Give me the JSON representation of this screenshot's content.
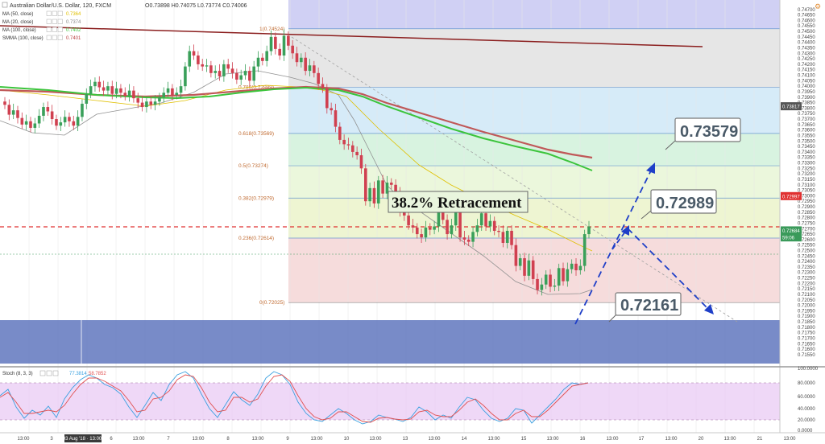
{
  "header": {
    "symbol": "Australian Dollar/U.S. Dollar, 120, FXCM",
    "ohlc": "O0.73898  H0.74075  L0.73774  C0.74006"
  },
  "legend": [
    {
      "label": "MA (50, close)",
      "value": "0.7364",
      "color": "#e0c000"
    },
    {
      "label": "MA (20, close)",
      "value": "0.7374",
      "color": "#888888"
    },
    {
      "label": "MA (100, close)",
      "value": "0.7402",
      "color": "#3cc43c"
    },
    {
      "label": "SMMA (100, close)",
      "value": "0.7401",
      "color": "#b84040"
    }
  ],
  "fib_levels": [
    {
      "label": "1(0.74524)",
      "value": 0.74524,
      "zone": "#e6e6e6"
    },
    {
      "label": "0.786(0.73989)",
      "value": 0.73989,
      "zone": "#d6ebf8"
    },
    {
      "label": "0.618(0.73569)",
      "value": 0.73569,
      "zone": "#d8f3e0"
    },
    {
      "label": "0.5(0.73274)",
      "value": 0.73274,
      "zone": "#ebf7dc"
    },
    {
      "label": "0.382(0.72979)",
      "value": 0.72979,
      "zone": "#eef5d2"
    },
    {
      "label": "0.236(0.72614)",
      "value": 0.72614,
      "zone": "#f6dcdc"
    },
    {
      "label": "0(0.72025)",
      "value": 0.72025,
      "zone": "#f6dcdc"
    }
  ],
  "annotations": {
    "retracement_label": "38.2% Retracement",
    "target_upper": "0.73579",
    "target_middle": "0.72989",
    "target_lower": "0.72161"
  },
  "price_tags": [
    {
      "label": "0.73817",
      "value": 0.73817,
      "color": "#555555"
    },
    {
      "label": "0.72997",
      "value": 0.72997,
      "color": "#e03030"
    },
    {
      "label": "0.72684",
      "value": 0.72684,
      "color": "#3a9a5a"
    },
    {
      "label": "59:06",
      "value": 0.7262,
      "color": "#3a9a5a"
    }
  ],
  "stoch": {
    "label": "Stoch (8, 3, 3)",
    "k_value": "77.3814",
    "d_value": "58.7852",
    "levels": [
      "100.0000",
      "80.0000",
      "60.0000",
      "40.0000",
      "20.0000",
      "0.0000"
    ]
  },
  "time_axis": [
    "13:00",
    "3",
    "03 Aug '18 · 13:00",
    "6",
    "13:00",
    "7",
    "13:00",
    "8",
    "13:00",
    "9",
    "13:00",
    "10",
    "13:00",
    "13",
    "13:00",
    "14",
    "13:00",
    "15",
    "13:00",
    "16",
    "13:00",
    "17",
    "13:00",
    "20",
    "13:00",
    "21",
    "13:00"
  ],
  "chart_data": {
    "type": "candlestick",
    "title": "Australian Dollar/U.S. Dollar, 120, FXCM",
    "ylim": [
      0.7152,
      0.7475
    ],
    "y_ticks": [
      0.747,
      0.7465,
      0.746,
      0.7455,
      0.745,
      0.7445,
      0.744,
      0.7435,
      0.743,
      0.7425,
      0.742,
      0.7415,
      0.741,
      0.7405,
      0.74,
      0.7395,
      0.739,
      0.7385,
      0.738,
      0.7375,
      0.737,
      0.7365,
      0.736,
      0.7355,
      0.735,
      0.7345,
      0.734,
      0.7335,
      0.733,
      0.7325,
      0.732,
      0.7315,
      0.731,
      0.7305,
      0.73,
      0.7295,
      0.729,
      0.7285,
      0.728,
      0.7275,
      0.727,
      0.7265,
      0.726,
      0.7255,
      0.725,
      0.7245,
      0.724,
      0.7235,
      0.723,
      0.7225,
      0.722,
      0.7215,
      0.721,
      0.7205,
      0.72,
      0.7195,
      0.719,
      0.7185,
      0.718,
      0.7175,
      0.717,
      0.7165,
      0.716,
      0.7155
    ],
    "y_tick_labels": [
      "0.74700",
      "0.74650",
      "0.74600",
      "0.74550",
      "0.74500",
      "0.74450",
      "0.74400",
      "0.74350",
      "0.74300",
      "0.74250",
      "0.74200",
      "0.74150",
      "0.74100",
      "0.74050",
      "0.74000",
      "0.73950",
      "0.73900",
      "0.73850",
      "0.73800",
      "0.73750",
      "0.73700",
      "0.73650",
      "0.73600",
      "0.73550",
      "0.73500",
      "0.73450",
      "0.73400",
      "0.73350",
      "0.73300",
      "0.73250",
      "0.73200",
      "0.73150",
      "0.73100",
      "0.73050",
      "0.73000",
      "0.72950",
      "0.72900",
      "0.72850",
      "0.72800",
      "0.72750",
      "0.72700",
      "0.72650",
      "0.72600",
      "0.72550",
      "0.72500",
      "0.72450",
      "0.72400",
      "0.72350",
      "0.72300",
      "0.72250",
      "0.72200",
      "0.72150",
      "0.72100",
      "0.72050",
      "0.72000",
      "0.71950",
      "0.71900",
      "0.71850",
      "0.71800",
      "0.71750",
      "0.71700",
      "0.71650",
      "0.71600",
      "0.71550"
    ],
    "closes": [
      0.7383,
      0.7374,
      0.7378,
      0.7371,
      0.7365,
      0.7368,
      0.7362,
      0.7366,
      0.7373,
      0.7381,
      0.7377,
      0.737,
      0.7364,
      0.7367,
      0.7372,
      0.7368,
      0.7364,
      0.7372,
      0.7384,
      0.7393,
      0.74,
      0.7404,
      0.7399,
      0.7396,
      0.74,
      0.7393,
      0.7398,
      0.7394,
      0.7391,
      0.7396,
      0.7389,
      0.7385,
      0.7381,
      0.7386,
      0.7383,
      0.7386,
      0.739,
      0.7394,
      0.7398,
      0.7392,
      0.7394,
      0.74,
      0.7418,
      0.7432,
      0.7428,
      0.742,
      0.7418,
      0.7419,
      0.7412,
      0.7414,
      0.7409,
      0.742,
      0.7416,
      0.7412,
      0.7406,
      0.741,
      0.7414,
      0.7405,
      0.7418,
      0.7426,
      0.7423,
      0.7432,
      0.7445,
      0.7434,
      0.7428,
      0.7446,
      0.7437,
      0.743,
      0.7422,
      0.7426,
      0.7414,
      0.7419,
      0.7412,
      0.7402,
      0.7398,
      0.738,
      0.7378,
      0.7363,
      0.7351,
      0.7347,
      0.7346,
      0.734,
      0.7337,
      0.7325,
      0.7295,
      0.7307,
      0.7293,
      0.7314,
      0.7302,
      0.7312,
      0.731,
      0.7302,
      0.7285,
      0.7282,
      0.7273,
      0.7271,
      0.7265,
      0.7262,
      0.7271,
      0.7269,
      0.7272,
      0.7286,
      0.7278,
      0.7265,
      0.7273,
      0.7286,
      0.7262,
      0.726,
      0.7258,
      0.7267,
      0.7273,
      0.7284,
      0.7272,
      0.7277,
      0.7268,
      0.7267,
      0.7257,
      0.7268,
      0.7255,
      0.7236,
      0.7243,
      0.7227,
      0.7241,
      0.7224,
      0.7214,
      0.7219,
      0.7228,
      0.7217,
      0.7218,
      0.7234,
      0.7222,
      0.7233,
      0.7238,
      0.7232,
      0.7236,
      0.7265,
      0.7272
    ]
  }
}
